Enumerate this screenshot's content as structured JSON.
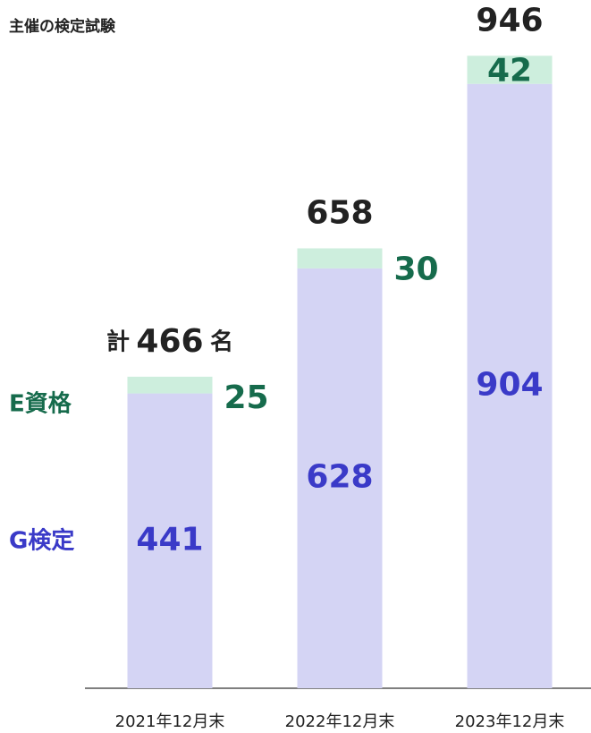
{
  "chart_data": {
    "type": "stacked-bar",
    "title": "主催の検定試験",
    "categories": [
      "2021年12月末",
      "2022年12月末",
      "2023年12月末"
    ],
    "series": [
      {
        "name": "G検定",
        "color": "#d4d4f4",
        "label_color": "#3a3ac8",
        "values": [
          441,
          628,
          904
        ]
      },
      {
        "name": "E資格",
        "color": "#cdeedd",
        "label_color": "#166b4c",
        "values": [
          25,
          30,
          42
        ]
      }
    ],
    "totals": [
      466,
      658,
      946
    ],
    "total_prefix": "計",
    "total_suffix": "名",
    "ylim": [
      0,
      1000
    ]
  }
}
